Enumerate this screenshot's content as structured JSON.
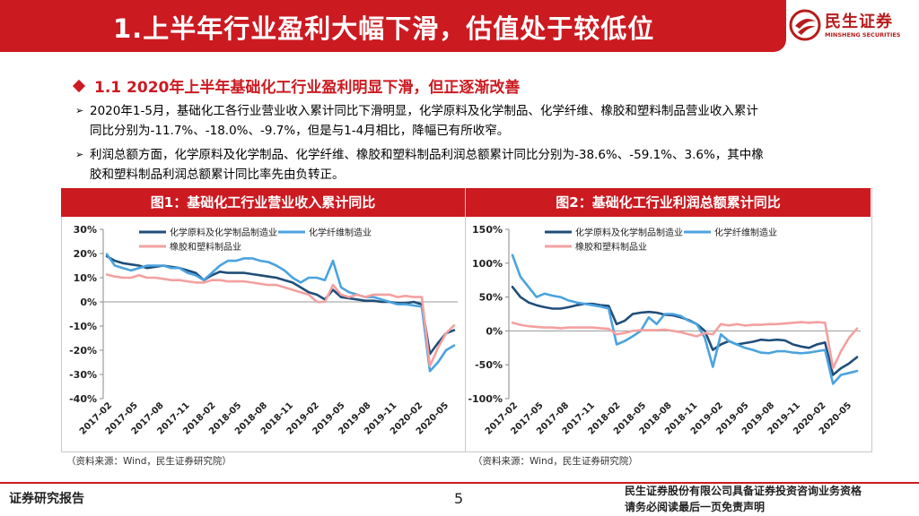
{
  "header": {
    "title": "1.上半年行业盈利大幅下滑，估值处于较低位",
    "logo_cn": "民生证券",
    "logo_en": "MINSHENG SECURITIES",
    "accent": "#cc1a21"
  },
  "section": {
    "title": "1.1 2020年上半年基础化工行业盈利明显下滑，但正逐渐改善"
  },
  "bullets": [
    {
      "line1": "2020年1-5月，基础化工各行业营业收入累计同比下滑明显，化学原料及化学制品、化学纤维、橡胶和塑料制品营业收入累计",
      "line2": "同比分别为-11.7%、-18.0%、-9.7%，但是与1-4月相比，降幅已有所收窄。"
    },
    {
      "line1": "利润总额方面，化学原料及化学制品、化学纤维、橡胶和塑料制品利润总额累计同比分别为-38.6%、-59.1%、3.6%，其中橡",
      "line2": "胶和塑料制品利润总额累计同比率先由负转正。"
    }
  ],
  "chart_data": [
    {
      "type": "line",
      "title": "图1：基础化工行业营业收入累计同比",
      "ylim": [
        -40,
        30
      ],
      "yticks": [
        "30%",
        "20%",
        "10%",
        "0%",
        "-10%",
        "-20%",
        "-30%",
        "-40%"
      ],
      "xticks": [
        "2017-02",
        "2017-05",
        "2017-08",
        "2017-11",
        "2018-02",
        "2018-05",
        "2018-08",
        "2018-11",
        "2019-02",
        "2019-05",
        "2019-08",
        "2019-11",
        "2020-02",
        "2020-05"
      ],
      "legend_position": "top",
      "series": [
        {
          "name": "化学原料及化学制品制造业",
          "color": "#1f4e79",
          "values": [
            18.9,
            17,
            16,
            15.5,
            15,
            14,
            14.5,
            15,
            14.5,
            14,
            13,
            12,
            9,
            11,
            12.5,
            12,
            12,
            12,
            11.5,
            11,
            10.5,
            10,
            9,
            8,
            6,
            4,
            3,
            1,
            5,
            2,
            1.5,
            1,
            0.5,
            0.5,
            0,
            0,
            -0.5,
            -0.5,
            0,
            -1,
            -21.5,
            -17,
            -13,
            -11.7
          ]
        },
        {
          "name": "化学纤维制造业",
          "color": "#4aa3df",
          "values": [
            19.7,
            15,
            14,
            13,
            14,
            15,
            15,
            15,
            14,
            14,
            12,
            11,
            9,
            12,
            15,
            17,
            17,
            18,
            18,
            17,
            16.5,
            15,
            13,
            10,
            8,
            10,
            10,
            9,
            17,
            6,
            4,
            3,
            2,
            2,
            1,
            0,
            -1,
            -1,
            -1.5,
            -2,
            -28.6,
            -25,
            -20,
            -18.0
          ]
        },
        {
          "name": "橡胶和塑料制品业",
          "color": "#f4a0a0",
          "values": [
            11.3,
            10.5,
            10,
            10,
            11,
            10,
            10,
            9.5,
            9,
            9,
            8.5,
            8,
            8,
            9,
            9,
            8.5,
            8.5,
            8.5,
            8,
            7.5,
            7,
            7,
            6,
            5,
            4,
            3,
            0,
            0,
            7,
            3,
            2,
            3,
            2,
            3,
            3,
            3,
            2,
            2.5,
            2,
            2,
            -26.5,
            -19,
            -13,
            -9.7
          ]
        }
      ]
    },
    {
      "type": "line",
      "title": "图2：基础化工行业利润总额累计同比",
      "ylim": [
        -100,
        150
      ],
      "yticks": [
        "150%",
        "100%",
        "50%",
        "0%",
        "-50%",
        "-100%"
      ],
      "xticks": [
        "2017-02",
        "2017-05",
        "2017-08",
        "2017-11",
        "2018-02",
        "2018-05",
        "2018-08",
        "2018-11",
        "2019-02",
        "2019-05",
        "2019-08",
        "2019-11",
        "2020-02",
        "2020-05"
      ],
      "legend_position": "top",
      "series": [
        {
          "name": "化学原料及化学制品制造业",
          "color": "#1f4e79",
          "values": [
            65,
            50,
            42,
            38,
            35,
            33,
            33,
            35,
            38,
            40,
            40,
            38,
            37,
            10,
            15,
            25,
            27,
            28,
            27,
            24,
            23,
            20,
            16,
            10,
            0,
            -28,
            -20,
            -15,
            -20,
            -18,
            -16,
            -13,
            -14,
            -13,
            -14,
            -20,
            -23,
            -25,
            -20,
            -17,
            -65,
            -55,
            -48,
            -38.6
          ]
        },
        {
          "name": "化学纤维制造业",
          "color": "#4aa3df",
          "values": [
            112,
            80,
            65,
            50,
            55,
            52,
            50,
            45,
            42,
            40,
            38,
            36,
            33,
            -20,
            -15,
            -8,
            0,
            20,
            10,
            25,
            25,
            22,
            15,
            10,
            -10,
            -53,
            -5,
            -15,
            -20,
            -25,
            -28,
            -32,
            -33,
            -30,
            -30,
            -32,
            -33,
            -32,
            -30,
            -28,
            -78,
            -65,
            -62,
            -59.1
          ]
        },
        {
          "name": "橡胶和塑料制品业",
          "color": "#f4a0a0",
          "values": [
            12,
            9,
            7,
            6,
            5,
            5,
            4,
            5,
            5,
            5,
            5,
            4,
            3,
            -5,
            -3,
            0,
            1,
            1,
            1,
            2,
            0,
            -2,
            -5,
            -8,
            -3,
            -5,
            10,
            8,
            10,
            8,
            9,
            9,
            10,
            10,
            11,
            12,
            13,
            12,
            13,
            12,
            -55,
            -30,
            -10,
            3.6
          ]
        }
      ]
    }
  ],
  "sources": [
    "（资料来源：Wind，民生证券研究院）",
    "（资料来源：Wind，民生证券研究院）"
  ],
  "footer": {
    "left": "证券研究报告",
    "page": "5",
    "right1": "民生证券股份有限公司具备证券投资咨询业务资格",
    "right2": "请务必阅读最后一页免责声明"
  }
}
